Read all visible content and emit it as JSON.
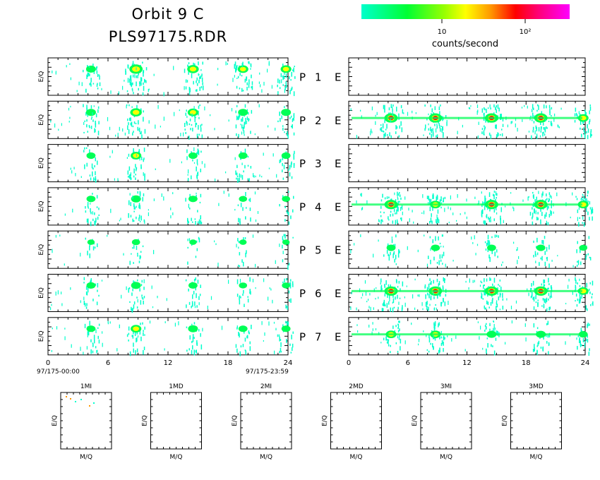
{
  "title": {
    "line1": "Orbit 9 C",
    "line2": "PLS97175.RDR"
  },
  "colorbar": {
    "label": "counts/second",
    "tick_labels": [
      "10",
      "10²"
    ],
    "colors": [
      "#00ffcc",
      "#00ff66",
      "#00ff00",
      "#ccff00",
      "#ffff00",
      "#ffcc00",
      "#ff8800",
      "#ff3300",
      "#ff0000",
      "#ff0066",
      "#ff00cc",
      "#ff00ff"
    ]
  },
  "chart_data": {
    "type": "heatmap",
    "x_ticks": [
      "0",
      "6",
      "12",
      "18",
      "24"
    ],
    "xlim": [
      0,
      24
    ],
    "left_ylabel": "E/Q",
    "left_start_label": "97/175-00:00",
    "left_end_label": "97/175-23:59",
    "rows": [
      {
        "p_label": "P",
        "num": "1",
        "e_label": "E",
        "left_intensity": [
          0.5,
          0.9,
          0.7,
          0.6,
          0.6
        ],
        "right_intensity": [
          0,
          0,
          0,
          0,
          0
        ]
      },
      {
        "p_label": "P",
        "num": "2",
        "e_label": "E",
        "left_intensity": [
          0.5,
          0.7,
          0.6,
          0.5,
          0.5
        ],
        "right_intensity": [
          0.9,
          0.9,
          0.9,
          0.9,
          0.6
        ]
      },
      {
        "p_label": "P",
        "num": "3",
        "e_label": "E",
        "left_intensity": [
          0.4,
          0.6,
          0.4,
          0.4,
          0.4
        ],
        "right_intensity": [
          0,
          0,
          0,
          0,
          0
        ]
      },
      {
        "p_label": "P",
        "num": "4",
        "e_label": "E",
        "left_intensity": [
          0.4,
          0.5,
          0.4,
          0.3,
          0.3
        ],
        "right_intensity": [
          0.9,
          0.6,
          0.9,
          0.9,
          0.6
        ]
      },
      {
        "p_label": "P",
        "num": "5",
        "e_label": "E",
        "left_intensity": [
          0.2,
          0.3,
          0.2,
          0.2,
          0.2
        ],
        "right_intensity": [
          0.4,
          0.4,
          0.4,
          0.4,
          0.3
        ]
      },
      {
        "p_label": "P",
        "num": "6",
        "e_label": "E",
        "left_intensity": [
          0.4,
          0.5,
          0.4,
          0.3,
          0.3
        ],
        "right_intensity": [
          0.9,
          0.9,
          0.9,
          0.9,
          0.6
        ]
      },
      {
        "p_label": "P",
        "num": "7",
        "e_label": "E",
        "left_intensity": [
          0.4,
          0.6,
          0.5,
          0.4,
          0.4
        ],
        "right_intensity": [
          0.6,
          0.6,
          0.5,
          0.5,
          0.4
        ]
      }
    ],
    "peak_hours": [
      4.3,
      8.8,
      14.5,
      19.5,
      23.8
    ],
    "mass_panels": [
      {
        "title": "1MI",
        "ylabel": "E/Q",
        "xlabel": "M/Q"
      },
      {
        "title": "1MD",
        "ylabel": "E/Q",
        "xlabel": "M/Q"
      },
      {
        "title": "2MI",
        "ylabel": "E/Q",
        "xlabel": "M/Q"
      },
      {
        "title": "2MD",
        "ylabel": "E/Q",
        "xlabel": "M/Q"
      },
      {
        "title": "3MI",
        "ylabel": "E/Q",
        "xlabel": "M/Q"
      },
      {
        "title": "3MD",
        "ylabel": "E/Q",
        "xlabel": "M/Q"
      }
    ]
  }
}
